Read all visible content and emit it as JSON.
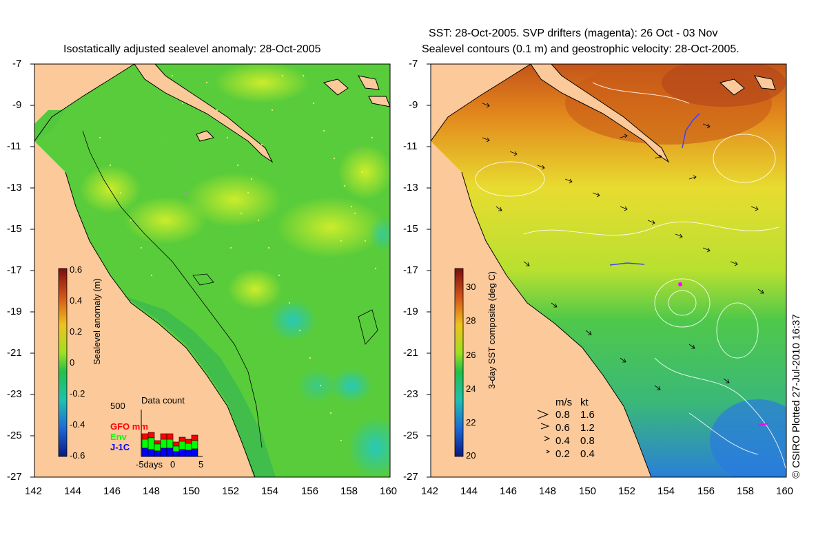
{
  "left_panel": {
    "title": "Isostatically adjusted sealevel anomaly: 28-Oct-2005",
    "colorbar": {
      "label": "Sealevel anomaly (m)",
      "ticks": [
        "0.6",
        "0.4",
        "0.2",
        "0",
        "-0.2",
        "-0.4",
        "-0.6"
      ],
      "range": [
        -0.6,
        0.6
      ]
    },
    "data_count": {
      "title": "Data count",
      "max_label": "500",
      "series": [
        {
          "name": "GFO mm",
          "color": "#ff0000"
        },
        {
          "name": "Env",
          "color": "#00ff00"
        },
        {
          "name": "J-1C",
          "color": "#0000ff"
        }
      ],
      "x_labels": [
        "-5days",
        "0",
        "5"
      ]
    }
  },
  "right_panel": {
    "title_line1": "SST: 28-Oct-2005. SVP drifters (magenta): 26 Oct - 03 Nov",
    "title_line2": "Sealevel contours (0.1 m) and geostrophic velocity: 28-Oct-2005.",
    "colorbar": {
      "label": "3-day SST composite (deg C)",
      "ticks": [
        "30",
        "28",
        "26",
        "24",
        "22",
        "20"
      ],
      "range": [
        20,
        31
      ]
    },
    "velocity_legend": {
      "header_ms": "m/s",
      "header_kt": "kt",
      "rows": [
        {
          "ms": "0.8",
          "kt": "1.6"
        },
        {
          "ms": "0.6",
          "kt": "1.2"
        },
        {
          "ms": "0.4",
          "kt": "0.8"
        },
        {
          "ms": "0.2",
          "kt": "0.4"
        }
      ]
    }
  },
  "axes": {
    "lat_ticks": [
      "-7",
      "-9",
      "-11",
      "-13",
      "-15",
      "-17",
      "-19",
      "-21",
      "-23",
      "-25",
      "-27"
    ],
    "lon_ticks": [
      "142",
      "144",
      "146",
      "148",
      "150",
      "152",
      "154",
      "156",
      "158",
      "160"
    ]
  },
  "credit": "© CSIRO Plotted 27-Jul-2010 16:37",
  "colors": {
    "land": "#fbc99a",
    "sea_green": "#3fc53f",
    "sst_warm": "#d86a10",
    "sst_mid": "#c8e020",
    "sst_cool": "#2aa7e0"
  }
}
